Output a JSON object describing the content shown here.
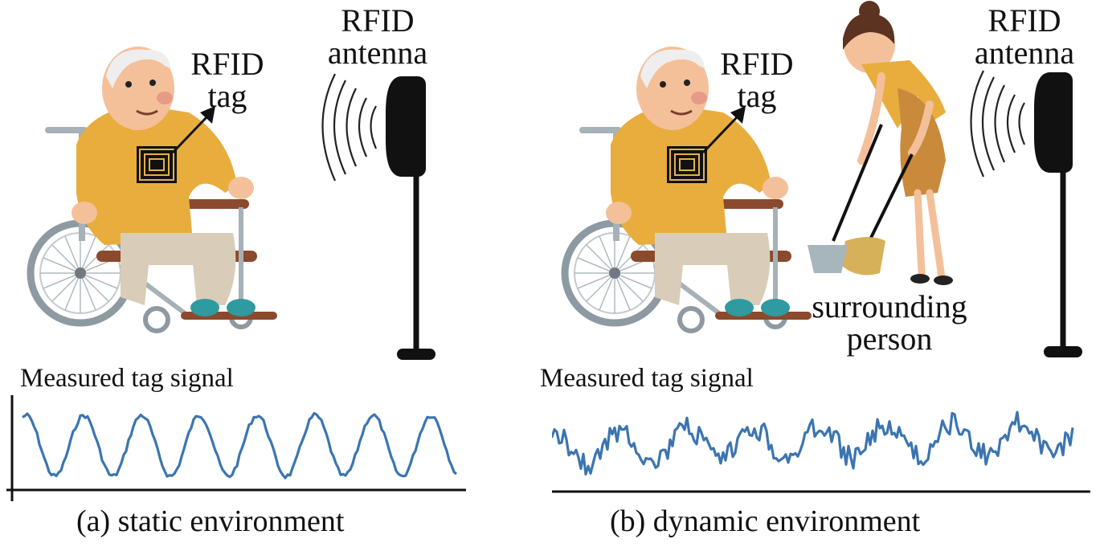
{
  "panels": [
    {
      "id": "a",
      "tag_label_line1": "RFID",
      "tag_label_line2": "tag",
      "antenna_label_line1": "RFID",
      "antenna_label_line2": "antenna",
      "signal_title": "Measured tag signal",
      "caption": "(a) static environment"
    },
    {
      "id": "b",
      "tag_label_line1": "RFID",
      "tag_label_line2": "tag",
      "antenna_label_line1": "RFID",
      "antenna_label_line2": "antenna",
      "person_label_line1": "surrounding",
      "person_label_line2": "person",
      "signal_title": "Measured tag signal",
      "caption": "(b) dynamic environment"
    }
  ],
  "colors": {
    "signal": "#3b75b0",
    "shirt": "#e8ad3d",
    "pants": "#d9cdb9",
    "skin": "#f4c09a",
    "wheelchair_frame": "#8b4a2d",
    "wheel": "#a6b1b8",
    "antenna": "#111111",
    "dress": "#c98a3c"
  }
}
